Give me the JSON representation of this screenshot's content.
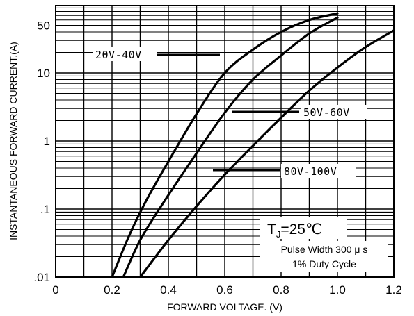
{
  "chart_data": {
    "type": "line",
    "xlabel": "FORWARD VOLTAGE. (V)",
    "ylabel": "INSTANTANEOUS FORWARD CURRENT.(A)",
    "xlim": [
      0,
      1.2
    ],
    "ylim": [
      0.01,
      80
    ],
    "y_scale": "log",
    "grid": true,
    "x_ticks": [
      "0",
      "0.2",
      "0.4",
      "0.6",
      "0.8",
      "1.0",
      "1.2"
    ],
    "y_ticks": [
      {
        "value": 0.01,
        "label": ".01"
      },
      {
        "value": 0.1,
        "label": ".1"
      },
      {
        "value": 1,
        "label": "1"
      },
      {
        "value": 10,
        "label": "10"
      },
      {
        "value": 50,
        "label": "50"
      }
    ],
    "series": [
      {
        "name": "20V-40V",
        "x": [
          0.2,
          0.26,
          0.32,
          0.4,
          0.5,
          0.6,
          0.7,
          0.8,
          0.9,
          1.0
        ],
        "y": [
          0.01,
          0.04,
          0.13,
          0.5,
          2.5,
          10,
          22,
          40,
          60,
          75
        ]
      },
      {
        "name": "50V-60V",
        "x": [
          0.24,
          0.3,
          0.38,
          0.48,
          0.6,
          0.7,
          0.8,
          0.9,
          1.0
        ],
        "y": [
          0.01,
          0.035,
          0.12,
          0.5,
          2.6,
          8,
          18,
          38,
          65
        ]
      },
      {
        "name": "80V-100V",
        "x": [
          0.3,
          0.4,
          0.5,
          0.6,
          0.7,
          0.8,
          0.9,
          1.0,
          1.1,
          1.2
        ],
        "y": [
          0.01,
          0.035,
          0.11,
          0.32,
          0.85,
          2.2,
          5.5,
          12,
          24,
          42
        ]
      }
    ]
  },
  "annotations": {
    "tj_main": "T",
    "tj_sub": "J",
    "tj_rest": "=25℃",
    "pulse_line1": "Pulse Width 300 μ s",
    "pulse_line2": "1% Duty Cycle"
  }
}
